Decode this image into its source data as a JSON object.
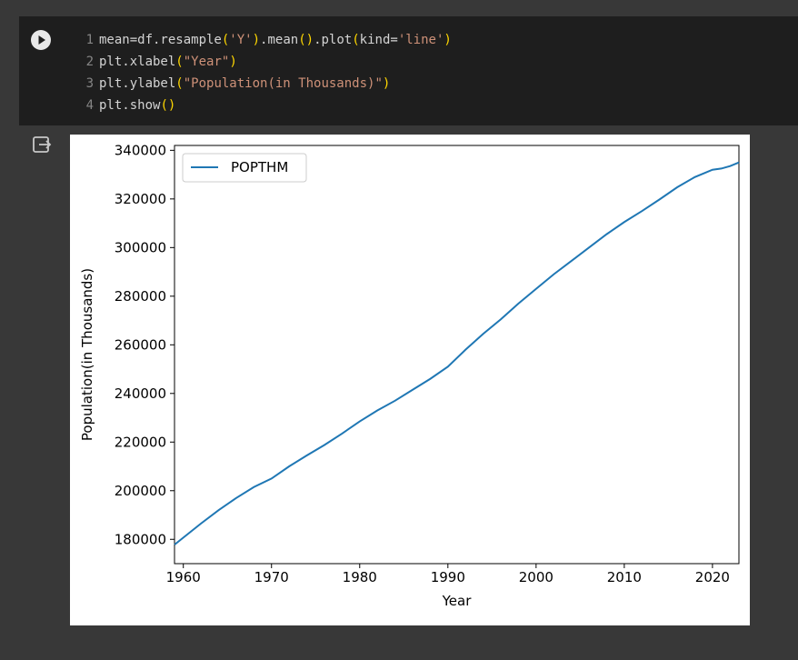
{
  "code_cell": {
    "run_icon": "play-circle-icon",
    "lines": [
      {
        "num": "1",
        "parts": [
          [
            "t",
            "mean=df.resample("
          ],
          [
            "s",
            "'Y'"
          ],
          [
            "t",
            ").mean().plot(kind="
          ],
          [
            "s",
            "'line'"
          ],
          [
            "t",
            ")"
          ]
        ]
      },
      {
        "num": "2",
        "parts": [
          [
            "t",
            "plt.xlabel("
          ],
          [
            "s",
            "\"Year\""
          ],
          [
            "t",
            ")"
          ]
        ]
      },
      {
        "num": "3",
        "parts": [
          [
            "t",
            "plt.ylabel("
          ],
          [
            "s",
            "\"Population(in Thousands)\""
          ],
          [
            "t",
            ")"
          ]
        ]
      },
      {
        "num": "4",
        "parts": [
          [
            "t",
            "plt.show()"
          ]
        ]
      }
    ]
  },
  "output": {
    "icon": "output-arrow-icon"
  },
  "chart_data": {
    "type": "line",
    "xlabel": "Year",
    "ylabel": "Population(in Thousands)",
    "xlim": [
      1959,
      2023
    ],
    "ylim": [
      170000,
      342000
    ],
    "xticks": [
      1960,
      1970,
      1980,
      1990,
      2000,
      2010,
      2020
    ],
    "yticks": [
      180000,
      200000,
      220000,
      240000,
      260000,
      280000,
      300000,
      320000,
      340000
    ],
    "legend_position": "top-left",
    "grid": false,
    "series": [
      {
        "name": "POPTHM",
        "color": "#1f77b4",
        "x": [
          1959,
          1960,
          1962,
          1964,
          1966,
          1968,
          1970,
          1972,
          1974,
          1976,
          1978,
          1980,
          1982,
          1984,
          1986,
          1988,
          1990,
          1992,
          1994,
          1996,
          1998,
          2000,
          2002,
          2004,
          2006,
          2008,
          2010,
          2012,
          2014,
          2016,
          2018,
          2020,
          2021,
          2022,
          2023
        ],
        "y": [
          177800,
          180700,
          186500,
          192000,
          197000,
          201500,
          205000,
          210000,
          214500,
          218800,
          223500,
          228500,
          233000,
          237000,
          241500,
          246000,
          251000,
          258000,
          264500,
          270500,
          277000,
          283000,
          289000,
          294500,
          300000,
          305500,
          310500,
          315000,
          319800,
          324800,
          329000,
          332000,
          332500,
          333500,
          335000
        ]
      }
    ]
  }
}
